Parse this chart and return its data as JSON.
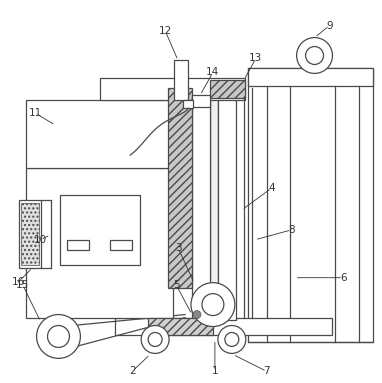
{
  "bg_color": "#ffffff",
  "line_color": "#4a4a4a",
  "label_color": "#333333",
  "figsize": [
    3.82,
    3.83
  ],
  "dpi": 100
}
